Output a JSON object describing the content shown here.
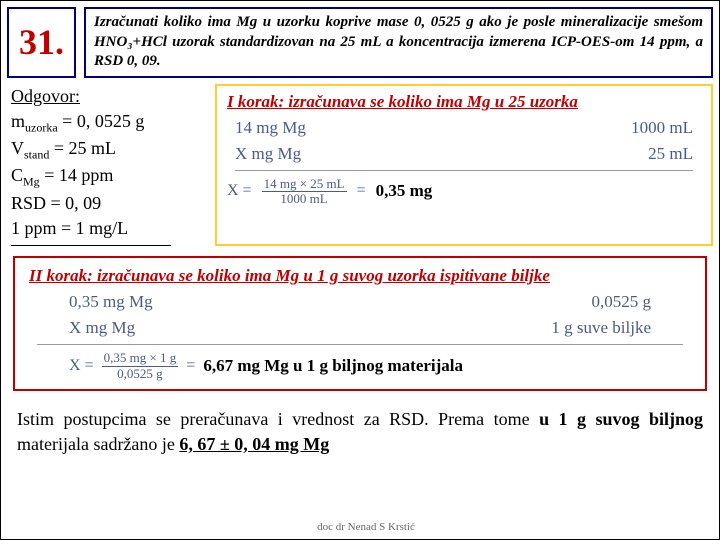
{
  "number": "31.",
  "problem": "Izračunati koliko ima Mg u uzorku koprive mase 0, 0525 g ako je posle mineralizacije smešom HNO₃+HCl uzorak standardizovan na 25 mL a koncentracija izmerena ICP-OES-om 14 ppm, a RSD 0, 09.",
  "answer": {
    "title": "Odgovor:",
    "l1a": "m",
    "l1s": "uzorka",
    "l1b": " = 0, 0525 g",
    "l2a": "V",
    "l2s": "stand",
    "l2b": " = 25 mL",
    "l3a": "C",
    "l3s": "Mg",
    "l3b": " = 14 ppm",
    "l4": "RSD = 0, 09",
    "l5": "1 ppm = 1 mg/L"
  },
  "step1": {
    "title": "I korak: izračunava se koliko ima Mg u 25 uzorka",
    "r1a": "14 mg Mg",
    "r1b": "1000 mL",
    "r2a": "X mg Mg",
    "r2b": "25 mL",
    "xeq": "X =",
    "num": "14 mg × 25 mL",
    "den": "1000 mL",
    "eq": "=",
    "res": "0,35 mg"
  },
  "step2": {
    "title": "II korak: izračunava se koliko ima Mg u 1 g suvog uzorka ispitivane biljke",
    "r1a": "0,35 mg Mg",
    "r1b": "0,0525 g",
    "r2a": "X mg Mg",
    "r2b": "1 g suve biljke",
    "xeq": "X =",
    "num": "0,35 mg × 1 g",
    "den": "0,0525 g",
    "eq": "=",
    "res": "6,67 mg Mg u 1 g biljnog materijala"
  },
  "conclusion_a": "Istim postupcima se preračunava i vrednost za RSD. Prema tome ",
  "conclusion_b": "u 1 g suvog biljnog",
  "conclusion_c": " materijala sadržano je ",
  "conclusion_d": "6, 67 ± 0, 04 mg Mg",
  "footer": "doc dr Nenad S Krstić"
}
